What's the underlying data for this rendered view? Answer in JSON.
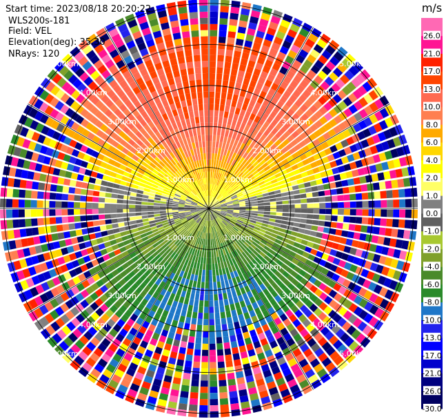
{
  "header": {
    "start_time": "Start time: 2023/08/18 20:20:22",
    "site": "WLS200s-181",
    "field": "Field: VEL",
    "elevation": "Elevation(deg): 35.30",
    "nrays": "NRays: 120"
  },
  "chart_data": {
    "type": "heatmap",
    "projection": "polar-ppi",
    "field": "VEL",
    "units": "m/s",
    "n_rays": 120,
    "elevation_deg": 35.3,
    "range_rings_km": [
      1.0,
      2.0,
      3.0,
      4.0,
      5.0
    ],
    "ring_labels": [
      "1.00km",
      "2.00km",
      "3.00km",
      "4.00km",
      "5.00km"
    ],
    "max_range_km": 5.1,
    "colorbar": {
      "title": "m/s",
      "levels": [
        -30.0,
        -26.0,
        -21.0,
        -17.0,
        -13.0,
        -10.0,
        -8.0,
        -6.0,
        -4.0,
        -2.0,
        -1.0,
        0.0,
        1.0,
        2.0,
        4.0,
        6.0,
        8.0,
        10.0,
        13.0,
        17.0,
        21.0,
        26.0
      ],
      "tick_labels": [
        "-30.0",
        "-26.0",
        "-21.0",
        "-17.0",
        "-13.0",
        "-10.0",
        "-8.0",
        "-6.0",
        "-4.0",
        "-2.0",
        "-1.0",
        "0.0",
        "1.0",
        "2.0",
        "4.0",
        "6.0",
        "8.0",
        "10.0",
        "13.0",
        "17.0",
        "21.0",
        "26.0"
      ],
      "colors": [
        "#000060",
        "#00007f",
        "#0000cc",
        "#0000ff",
        "#2222ee",
        "#1f77c8",
        "#2a8a2a",
        "#4a8a2a",
        "#7fa02a",
        "#a8c830",
        "#606060",
        "#808080",
        "#ffff66",
        "#ffff00",
        "#ffd700",
        "#ffaa00",
        "#ff7f50",
        "#ff6a50",
        "#ff4500",
        "#ff2200",
        "#ff1493",
        "#ff69b4"
      ]
    },
    "velocity_pattern": {
      "north_sector": "positive, peak about 13-17 m/s",
      "south_sector": "negative, about -6 to -10 m/s",
      "zero_line": "roughly east-west",
      "outer_ranges": "noisy, random colors"
    }
  }
}
